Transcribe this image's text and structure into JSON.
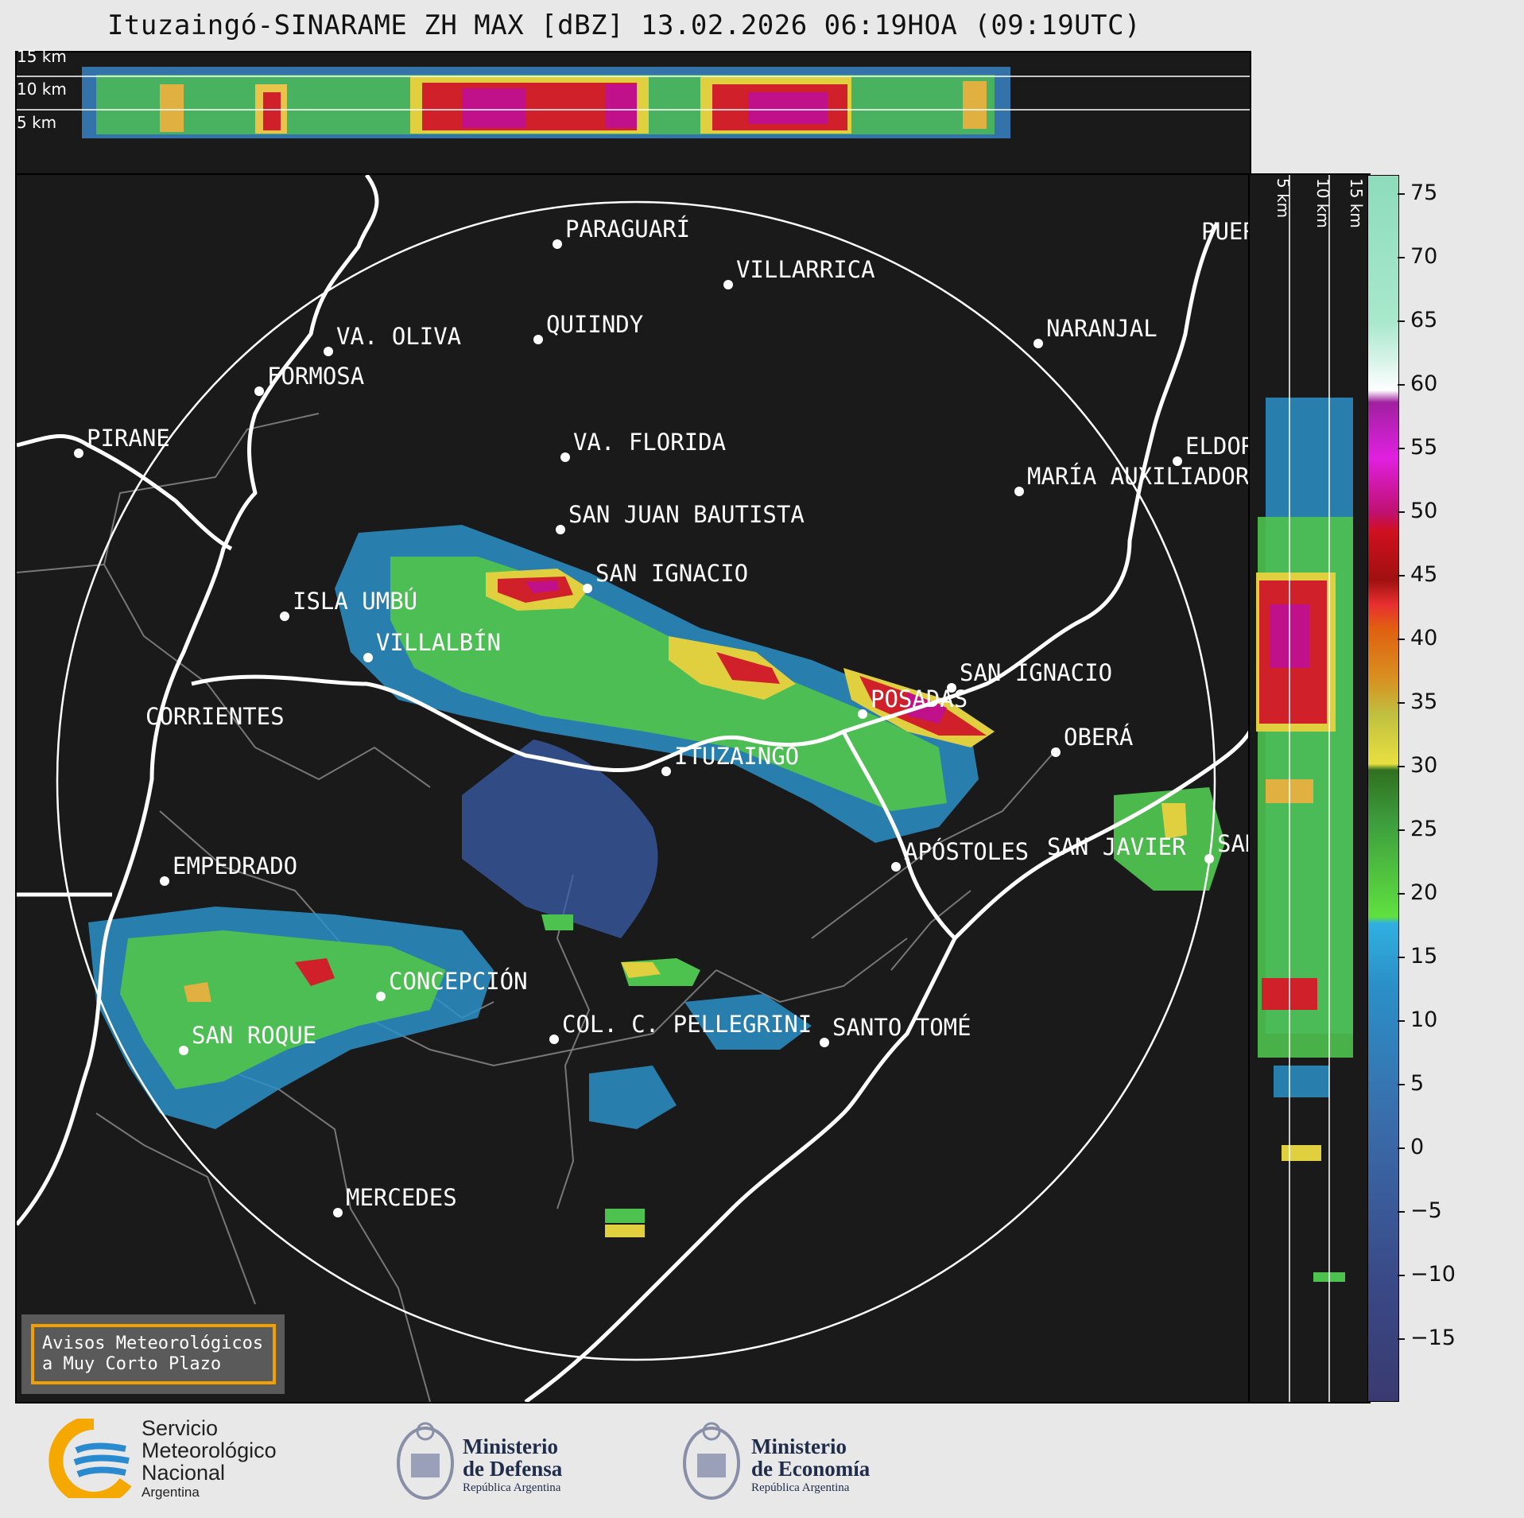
{
  "title": "Ituzaingó-SINARAME ZH MAX [dBZ] 13.02.2026 06:19HOA (09:19UTC)",
  "top_panel": {
    "km_labels": [
      "15 km",
      "10 km",
      "5 km"
    ]
  },
  "side_panel": {
    "km_labels": [
      "5 km",
      "10 km",
      "15 km"
    ]
  },
  "cities": [
    {
      "name": "PIRANE"
    },
    {
      "name": "PARAGUARÍ"
    },
    {
      "name": "VILLARRICA"
    },
    {
      "name": "QUIINDY"
    },
    {
      "name": "VA. OLIVA"
    },
    {
      "name": "FORMOSA"
    },
    {
      "name": "NARANJAL"
    },
    {
      "name": "PUERTO"
    },
    {
      "name": "VA. FLORIDA"
    },
    {
      "name": "ELDORADO"
    },
    {
      "name": "MARÍA AUXILIADORA"
    },
    {
      "name": "SAN JUAN BAUTISTA"
    },
    {
      "name": "SAN IGNACIO"
    },
    {
      "name": "ISLA UMBÚ"
    },
    {
      "name": "VILLALBÍN"
    },
    {
      "name": "SAN IGNACIO"
    },
    {
      "name": "POSADAS"
    },
    {
      "name": "CORRIENTES"
    },
    {
      "name": "ITUZAINGÓ"
    },
    {
      "name": "OBERÁ"
    },
    {
      "name": "APÓSTOLES"
    },
    {
      "name": "SAN JAVIER"
    },
    {
      "name": "SAN"
    },
    {
      "name": "EMPEDRADO"
    },
    {
      "name": "CONCEPCIÓN"
    },
    {
      "name": "COL. C. PELLEGRINI"
    },
    {
      "name": "SANTO TOMÉ"
    },
    {
      "name": "SAN ROQUE"
    },
    {
      "name": "MERCEDES"
    }
  ],
  "colorbar": {
    "ticks": [
      "75",
      "70",
      "65",
      "60",
      "55",
      "50",
      "45",
      "40",
      "35",
      "30",
      "25",
      "20",
      "15",
      "10",
      "5",
      "0",
      "−5",
      "−10",
      "−15"
    ]
  },
  "aviso": {
    "line1": "Avisos Meteorológicos",
    "line2": "a Muy Corto Plazo"
  },
  "logos": {
    "smn": {
      "line1": "Servicio",
      "line2": "Meteorológico",
      "line3": "Nacional",
      "line4": "Argentina"
    },
    "defensa": {
      "line1": "Ministerio",
      "line2": "de Defensa",
      "line3": "República Argentina"
    },
    "economia": {
      "line1": "Ministerio",
      "line2": "de Economía",
      "line3": "República Argentina"
    }
  },
  "colors": {
    "background": "#1a1a1a",
    "accent": "#f0a000",
    "smn_blue": "#2a8ad0",
    "smn_orange": "#f5a800"
  }
}
